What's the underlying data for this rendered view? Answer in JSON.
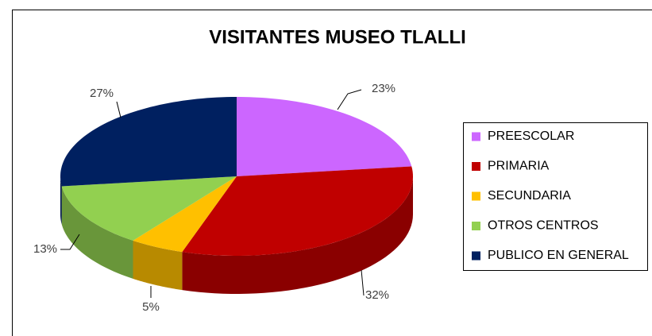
{
  "chart_data": {
    "type": "pie3d",
    "title": "VISITANTES MUSEO TLALLI",
    "categories": [
      "PREESCOLAR",
      "PRIMARIA",
      "SECUNDARIA",
      "OTROS CENTROS",
      "PUBLICO EN GENERAL"
    ],
    "values": [
      23,
      32,
      5,
      13,
      27
    ],
    "value_labels": [
      "23%",
      "32%",
      "5%",
      "13%",
      "27%"
    ],
    "colors": [
      "#cc66ff",
      "#c00000",
      "#ffc000",
      "#92d050",
      "#002060"
    ],
    "legend": "right"
  }
}
